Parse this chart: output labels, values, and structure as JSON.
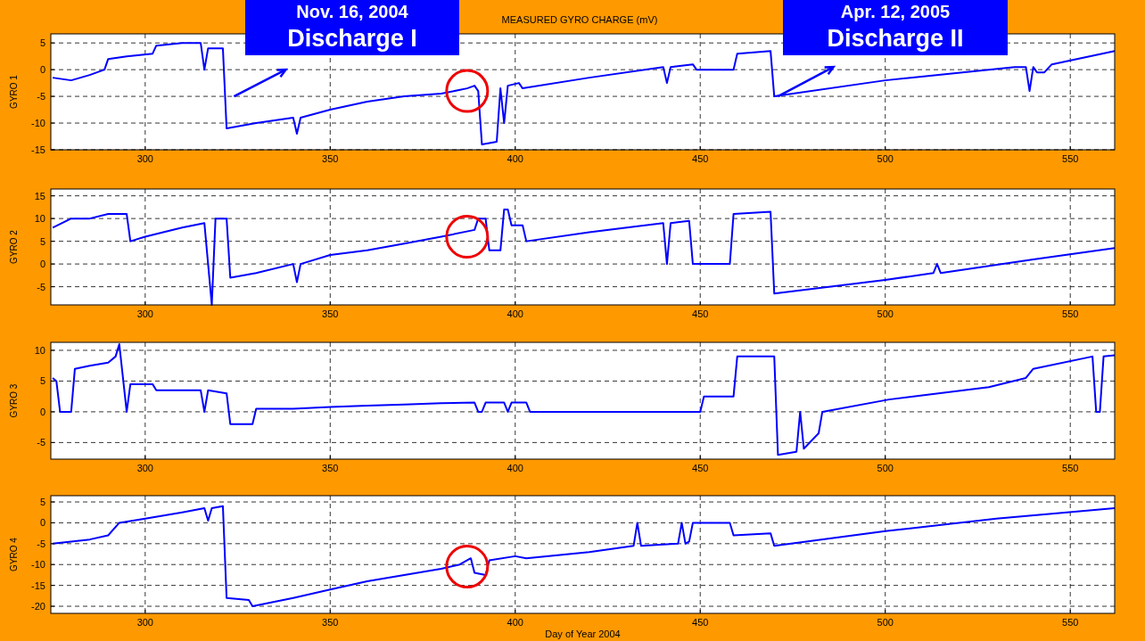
{
  "chart_data": [
    {
      "type": "line",
      "title": "MEASURED GYRO CHARGE (mV)",
      "ylabel": "GYRO 1",
      "annotations": [
        "Nov. 16, 2004",
        "Discharge I",
        "Apr. 12, 2005",
        {
          "text": "Discharge II",
          "x": 470,
          "y": -5
        }
      ],
      "grid": true,
      "marker": "none",
      "line_style": "solid",
      "xlim": [
        274.5,
        562
      ],
      "xticks": [
        300,
        350,
        400,
        450,
        500,
        550
      ],
      "ylim": [
        -15,
        6.7
      ],
      "yticks": [
        -15,
        -10,
        -5,
        0,
        5
      ],
      "x": [
        275,
        280,
        285,
        289,
        290,
        295,
        302,
        303,
        310,
        315,
        316,
        317,
        321,
        322,
        330,
        340,
        341,
        342,
        350,
        360,
        370,
        380,
        387,
        389,
        390,
        391,
        395,
        396,
        397,
        398,
        401,
        402,
        420,
        440,
        441,
        442,
        448,
        449,
        459,
        460,
        469,
        470,
        500,
        535,
        538,
        539,
        540,
        541,
        543,
        545,
        562
      ],
      "series": [
        {
          "color": "#0000ff",
          "values": [
            -1.5,
            -2,
            -1,
            0,
            2,
            2.5,
            3,
            4.5,
            5,
            5,
            0,
            4,
            4,
            -11,
            -10,
            -9,
            -12,
            -9,
            -7.5,
            -6,
            -5,
            -4.5,
            -3.5,
            -3,
            -4,
            -14,
            -13.5,
            -3.5,
            -10,
            -3,
            -2.5,
            -3.5,
            -1.5,
            0.5,
            -2.5,
            0.5,
            1,
            0,
            0,
            3,
            3.5,
            -5,
            -2,
            0.5,
            0.5,
            -4,
            0.5,
            -0.5,
            -0.5,
            1,
            3.5
          ]
        }
      ]
    },
    {
      "type": "line",
      "ylabel": "GYRO 2",
      "grid": true,
      "marker": "none",
      "line_style": "solid",
      "xlim": [
        274.5,
        562
      ],
      "xticks": [
        300,
        350,
        400,
        450,
        500,
        550
      ],
      "ylim": [
        -9,
        16.5
      ],
      "yticks": [
        -5,
        0,
        5,
        10,
        15
      ],
      "x": [
        275,
        280,
        285,
        290,
        295,
        296,
        300,
        310,
        316,
        317,
        318,
        319,
        322,
        323,
        330,
        340,
        341,
        342,
        350,
        360,
        370,
        380,
        389,
        390,
        392,
        393,
        396,
        397,
        398,
        399,
        402,
        403,
        420,
        440,
        441,
        442,
        447,
        448,
        458,
        459,
        469,
        470,
        500,
        513,
        514,
        515,
        540,
        562
      ],
      "series": [
        {
          "color": "#0000ff",
          "values": [
            8,
            10,
            10,
            11,
            11,
            5,
            6,
            8,
            9,
            0,
            -9,
            10,
            10,
            -3,
            -2,
            0,
            -4,
            0,
            2,
            3,
            4.5,
            6,
            7.5,
            10,
            10,
            3,
            3,
            12,
            12,
            8.5,
            8.5,
            5,
            7,
            9,
            0,
            9,
            9.5,
            0,
            0,
            11,
            11.5,
            -6.5,
            -3.5,
            -2,
            0,
            -2,
            1,
            3.5
          ]
        }
      ]
    },
    {
      "type": "line",
      "ylabel": "GYRO 3",
      "grid": true,
      "marker": "none",
      "line_style": "solid",
      "xlim": [
        274.5,
        562
      ],
      "xticks": [
        300,
        350,
        400,
        450,
        500,
        550
      ],
      "ylim": [
        -7.7,
        11.3
      ],
      "yticks": [
        -5,
        0,
        5,
        10
      ],
      "x": [
        275,
        276,
        277,
        280,
        281,
        285,
        290,
        292,
        293,
        295,
        296,
        302,
        303,
        315,
        316,
        317,
        322,
        323,
        329,
        330,
        340,
        350,
        360,
        370,
        380,
        389,
        390,
        391,
        392,
        397,
        398,
        399,
        403,
        404,
        450,
        451,
        459,
        460,
        470,
        471,
        476,
        477,
        478,
        482,
        483,
        501,
        528,
        538,
        540,
        556,
        557,
        558,
        559,
        562
      ],
      "series": [
        {
          "color": "#0000ff",
          "values": [
            5.5,
            5,
            0,
            0,
            7,
            7.5,
            8,
            9,
            11,
            0,
            4.5,
            4.5,
            3.5,
            3.5,
            0,
            3.5,
            3,
            -2,
            -2,
            0.5,
            0.5,
            0.8,
            1,
            1.2,
            1.4,
            1.5,
            0,
            0,
            1.5,
            1.5,
            0,
            1.5,
            1.5,
            0,
            0,
            2.5,
            2.5,
            9,
            9,
            -7,
            -6.5,
            0,
            -6,
            -3.5,
            0,
            2,
            4,
            5.5,
            7,
            9,
            0,
            0,
            9,
            9.2
          ]
        }
      ]
    },
    {
      "type": "line",
      "xlabel": "Day of Year 2004",
      "ylabel": "GYRO 4",
      "grid": true,
      "marker": "none",
      "line_style": "solid",
      "xlim": [
        274.5,
        562
      ],
      "xticks": [
        300,
        350,
        400,
        450,
        500,
        550
      ],
      "ylim": [
        -21.7,
        6.5
      ],
      "yticks": [
        -20,
        -15,
        -10,
        -5,
        0,
        5
      ],
      "x": [
        275,
        280,
        285,
        290,
        293,
        300,
        310,
        316,
        317,
        318,
        321,
        322,
        328,
        329,
        340,
        350,
        360,
        370,
        380,
        385,
        388,
        389,
        392,
        393,
        400,
        403,
        420,
        432,
        433,
        434,
        444,
        445,
        446,
        447,
        448,
        458,
        459,
        469,
        470,
        500,
        530,
        562
      ],
      "series": [
        {
          "color": "#0000ff",
          "values": [
            -5,
            -4.5,
            -4,
            -3,
            0,
            1,
            2.5,
            3.5,
            0.5,
            3.5,
            4,
            -18,
            -18.5,
            -20,
            -18,
            -16,
            -14,
            -12.5,
            -11,
            -10,
            -8.5,
            -12,
            -12.5,
            -9,
            -8,
            -8.5,
            -7,
            -5.5,
            0,
            -5.5,
            -5,
            0,
            -5,
            -4.5,
            0,
            0,
            -3,
            -2.5,
            -5.5,
            -2,
            1,
            3.5
          ]
        }
      ]
    }
  ]
}
